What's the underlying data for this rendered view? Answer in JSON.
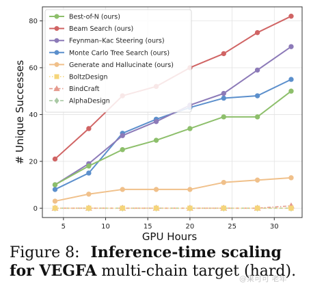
{
  "chart_data": {
    "type": "line",
    "xlabel": "GPU Hours",
    "ylabel": "# Unique Successes",
    "xlim": [
      2.5,
      33.3
    ],
    "ylim": [
      -4,
      86
    ],
    "xticks": [
      5,
      10,
      15,
      20,
      25,
      30
    ],
    "yticks": [
      0,
      20,
      40,
      60,
      80
    ],
    "grid": true,
    "legend_position": "top-left",
    "series": [
      {
        "name": "Best-of-N (ours)",
        "color": "#8dbf6b",
        "marker": "circle",
        "style": "solid",
        "x": [
          4,
          8,
          12,
          16,
          20,
          24,
          28,
          32
        ],
        "y": [
          10,
          18,
          25,
          29,
          34,
          39,
          39,
          50
        ]
      },
      {
        "name": "Beam Search (ours)",
        "color": "#d06464",
        "marker": "circle",
        "style": "solid",
        "x": [
          4,
          8,
          12,
          16,
          20,
          24,
          28,
          32
        ],
        "y": [
          21,
          34,
          48,
          52,
          60,
          66,
          75,
          82
        ]
      },
      {
        "name": "Feynman–Kac Steering (ours)",
        "color": "#8c7ab8",
        "marker": "circle",
        "style": "solid",
        "x": [
          4,
          8,
          12,
          16,
          20,
          24,
          28,
          32
        ],
        "y": [
          10,
          19,
          31,
          37,
          44,
          49,
          59,
          69
        ]
      },
      {
        "name": "Monte Carlo Tree Search (ours)",
        "color": "#5b8fcc",
        "marker": "circle",
        "style": "solid",
        "x": [
          4,
          8,
          12,
          16,
          20,
          24,
          28,
          32
        ],
        "y": [
          8,
          15,
          32,
          38,
          43,
          47,
          48,
          55
        ]
      },
      {
        "name": "Generate and Hallucinate (ours)",
        "color": "#f0c08a",
        "marker": "circle",
        "style": "solid",
        "x": [
          4,
          8,
          12,
          16,
          20,
          24,
          28,
          32
        ],
        "y": [
          3,
          6,
          8,
          8,
          8,
          11,
          12,
          13
        ]
      },
      {
        "name": "BoltzDesign",
        "color": "#f5d57a",
        "marker": "square",
        "style": "dotted",
        "x": [
          4,
          8,
          12,
          16,
          20,
          24,
          28,
          32
        ],
        "y": [
          0,
          0,
          0,
          0,
          0,
          0,
          0,
          0
        ]
      },
      {
        "name": "BindCraft",
        "color": "#e59a8e",
        "marker": "triangle",
        "style": "dashdot",
        "x": [
          4,
          8,
          12,
          16,
          20,
          24,
          28,
          32
        ],
        "y": [
          0,
          0,
          0,
          0,
          0,
          0,
          0,
          1
        ]
      },
      {
        "name": "AlphaDesign",
        "color": "#a9c9a4",
        "marker": "diamond",
        "style": "dashed",
        "x": [
          4,
          8,
          12,
          16,
          20,
          24,
          28,
          32
        ],
        "y": [
          0,
          0,
          0,
          0,
          0,
          0,
          0,
          0
        ]
      }
    ]
  },
  "caption": {
    "prefix": "Figure 8:",
    "bold_text": "Inference-time scaling for VEGFA",
    "rest": "multi-chain target (hard)."
  },
  "watermark": "@果可可 老年"
}
